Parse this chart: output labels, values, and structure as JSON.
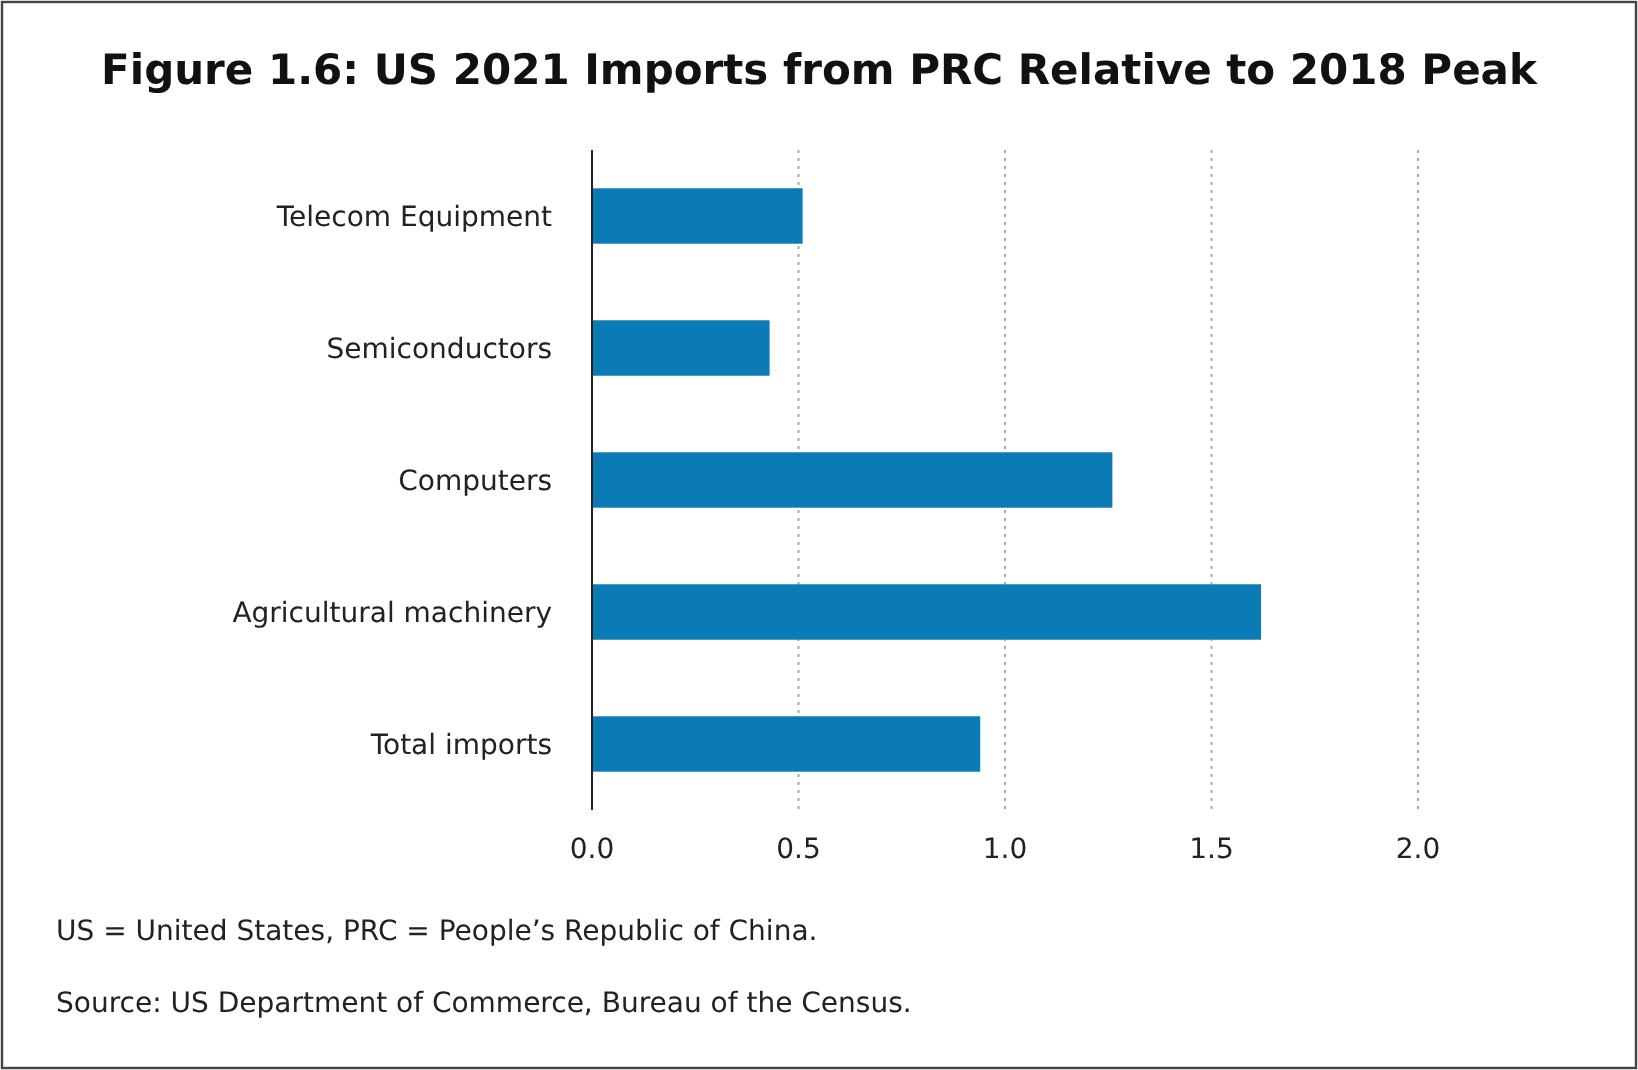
{
  "chart_data": {
    "type": "bar",
    "orientation": "horizontal",
    "title": "Figure 1.6: US 2021 Imports from PRC Relative to 2018 Peak",
    "categories": [
      "Telecom Equipment",
      "Semiconductors",
      "Computers",
      "Agricultural machinery",
      "Total imports"
    ],
    "values": [
      0.51,
      0.43,
      1.26,
      1.62,
      0.94
    ],
    "color": "#0a7bb5",
    "xlim": [
      0,
      2
    ],
    "xticks": [
      {
        "value": 0,
        "label": "0.0"
      },
      {
        "value": 0.5,
        "label": "0.5"
      },
      {
        "value": 1,
        "label": "1.0"
      },
      {
        "value": 1.5,
        "label": "1.5"
      },
      {
        "value": 2,
        "label": "2.0"
      }
    ],
    "grid": "x",
    "annotations": [
      "US = United States, PRC = People’s Republic of China.",
      "Source: US Department of Commerce, Bureau of the Census."
    ]
  }
}
